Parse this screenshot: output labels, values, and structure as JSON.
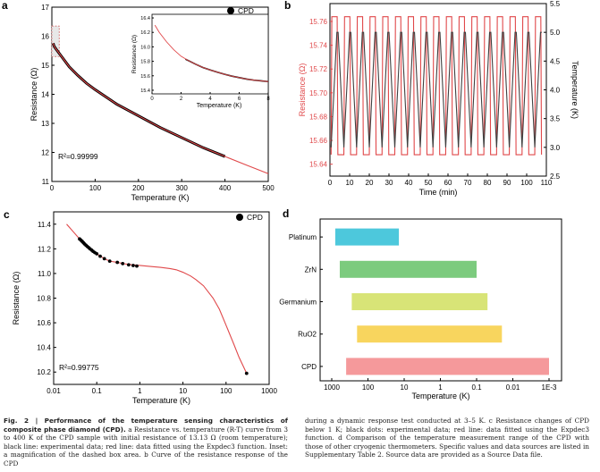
{
  "chart_data": [
    {
      "id": "a",
      "type": "line",
      "panel_label": "a",
      "xlabel": "Temperature (K)",
      "ylabel": "Resistance (Ω)",
      "xlim": [
        0,
        500
      ],
      "ylim": [
        11,
        17
      ],
      "xticks": [
        0,
        100,
        200,
        300,
        400,
        500
      ],
      "yticks": [
        11,
        12,
        13,
        14,
        15,
        16,
        17
      ],
      "legend": "CPD",
      "legend_position": "top-right",
      "annotation": "R² = 0.99999",
      "annotation_text": "R²=0.99999",
      "series": [
        {
          "role": "experimental",
          "color": "#000000",
          "marker": "dot",
          "x": [
            3,
            5,
            10,
            20,
            40,
            60,
            80,
            100,
            150,
            200,
            250,
            300,
            350,
            400
          ],
          "y": [
            15.76,
            15.66,
            15.55,
            15.35,
            14.95,
            14.65,
            14.38,
            14.16,
            13.66,
            13.26,
            12.86,
            12.51,
            12.16,
            11.86
          ]
        },
        {
          "role": "fit",
          "color": "#e0484a",
          "x": [
            3,
            5,
            10,
            20,
            40,
            60,
            80,
            100,
            150,
            200,
            250,
            300,
            350,
            400,
            450,
            500
          ],
          "y": [
            15.76,
            15.66,
            15.55,
            15.35,
            14.95,
            14.65,
            14.38,
            14.16,
            13.66,
            13.26,
            12.86,
            12.51,
            12.16,
            11.86,
            11.56,
            11.27
          ]
        }
      ],
      "inset": {
        "xlabel": "Temperature (K)",
        "ylabel": "Resistance (Ω)",
        "xlim": [
          0,
          8
        ],
        "ylim": [
          15.35,
          16.45
        ],
        "xticks": [
          0,
          2,
          4,
          6,
          8
        ],
        "yticks": [
          15.4,
          15.6,
          15.8,
          16.0,
          16.2,
          16.4
        ],
        "ytick_labels": [
          "15.4",
          "15.6",
          "15.8",
          "16.0",
          "16.2",
          "16.4"
        ],
        "series": [
          {
            "role": "experimental",
            "color": "#000000",
            "x": [
              2.3,
              2.6,
              3,
              3.5,
              4,
              4.5,
              5,
              5.5,
              6,
              6.5,
              7,
              7.5,
              8
            ],
            "y": [
              15.83,
              15.8,
              15.76,
              15.715,
              15.68,
              15.65,
              15.62,
              15.595,
              15.575,
              15.555,
              15.54,
              15.53,
              15.52
            ]
          },
          {
            "role": "fit",
            "color": "#e0484a",
            "x": [
              0.2,
              0.5,
              1,
              1.5,
              2,
              2.5,
              3,
              3.5,
              4,
              4.5,
              5,
              5.5,
              6,
              6.5,
              7,
              7.5,
              8
            ],
            "y": [
              16.3,
              16.2,
              16.07,
              15.96,
              15.87,
              15.81,
              15.76,
              15.715,
              15.68,
              15.65,
              15.62,
              15.595,
              15.575,
              15.555,
              15.54,
              15.53,
              15.52
            ]
          }
        ]
      }
    },
    {
      "id": "b",
      "type": "line",
      "panel_label": "b",
      "xlabel": "Time (min)",
      "ylabel": "Resistance (Ω)",
      "ylabel_right": "Temperature (K)",
      "xlim": [
        0,
        110
      ],
      "ylim": [
        15.63,
        15.775
      ],
      "ylim_right": [
        2.5,
        5.5
      ],
      "xticks": [
        0,
        10,
        20,
        30,
        40,
        50,
        60,
        70,
        80,
        90,
        100,
        110
      ],
      "yticks": [
        15.64,
        15.66,
        15.68,
        15.7,
        15.72,
        15.74,
        15.76
      ],
      "ytick_labels": [
        "15.64",
        "15.66",
        "15.68",
        "15.70",
        "15.72",
        "15.74",
        "15.76"
      ],
      "yticks_right": [
        2.5,
        3.0,
        3.5,
        4.0,
        4.5,
        5.0,
        5.5
      ],
      "ytick_labels_right": [
        "2.5",
        "3.0",
        "3.5",
        "4.0",
        "4.5",
        "5.0",
        "5.5"
      ],
      "resistance_color": "#e0484a",
      "temperature_color": "#404040",
      "cycle_period_min": 6.47,
      "resistance_high": 15.764,
      "resistance_low": 15.648,
      "temperature_high": 5.0,
      "temperature_low": 3.0
    },
    {
      "id": "c",
      "type": "line",
      "panel_label": "c",
      "xlabel": "Temperature (K)",
      "ylabel": "Resistance (Ω)",
      "xscale": "log",
      "xlim": [
        0.01,
        1000
      ],
      "ylim": [
        10.1,
        11.5
      ],
      "xticks": [
        0.01,
        0.1,
        1,
        10,
        100,
        1000
      ],
      "xtick_labels": [
        "0.01",
        "0.1",
        "1",
        "10",
        "100",
        "1000"
      ],
      "yticks": [
        10.2,
        10.4,
        10.6,
        10.8,
        11.0,
        11.2,
        11.4
      ],
      "ytick_labels": [
        "10.2",
        "10.4",
        "10.6",
        "10.8",
        "11.0",
        "11.2",
        "11.4"
      ],
      "legend": "CPD",
      "legend_position": "top-right",
      "annotation": "R² = 0.99775",
      "annotation_text": "R²=0.99775",
      "series": [
        {
          "role": "experimental",
          "color": "#000000",
          "x": [
            0.04,
            0.043,
            0.046,
            0.049,
            0.052,
            0.056,
            0.06,
            0.065,
            0.07,
            0.076,
            0.082,
            0.09,
            0.1,
            0.12,
            0.15,
            0.2,
            0.3,
            0.4,
            0.55,
            0.7,
            0.85,
            300
          ],
          "y": [
            11.28,
            11.27,
            11.26,
            11.25,
            11.24,
            11.23,
            11.22,
            11.21,
            11.2,
            11.19,
            11.18,
            11.17,
            11.16,
            11.14,
            11.12,
            11.1,
            11.09,
            11.08,
            11.07,
            11.065,
            11.06,
            10.19
          ]
        },
        {
          "role": "fit",
          "color": "#e0484a",
          "x": [
            0.02,
            0.03,
            0.04,
            0.06,
            0.08,
            0.1,
            0.15,
            0.2,
            0.3,
            0.5,
            0.7,
            1,
            2,
            3,
            5,
            7,
            10,
            15,
            20,
            30,
            50,
            70,
            100,
            150,
            200,
            300
          ],
          "y": [
            11.4,
            11.33,
            11.28,
            11.22,
            11.18,
            11.16,
            11.12,
            11.1,
            11.09,
            11.075,
            11.07,
            11.065,
            11.055,
            11.05,
            11.04,
            11.03,
            11.01,
            10.98,
            10.95,
            10.9,
            10.8,
            10.71,
            10.58,
            10.43,
            10.32,
            10.19
          ]
        }
      ]
    },
    {
      "id": "d",
      "type": "bar",
      "orientation": "horizontal",
      "panel_label": "d",
      "xlabel": "Temperature (K)",
      "xscale": "log-reversed",
      "xlim": [
        1000,
        0.001
      ],
      "xticks": [
        1000,
        100,
        10,
        1,
        0.1,
        0.01,
        0.001
      ],
      "xtick_labels": [
        "1000",
        "100",
        "10",
        "1",
        "0.1",
        "0.01",
        "1E-3"
      ],
      "categories": [
        "Platinum",
        "ZrN",
        "Germanium",
        "RuO2",
        "CPD"
      ],
      "ranges": [
        [
          800,
          14
        ],
        [
          600,
          0.1
        ],
        [
          280,
          0.05
        ],
        [
          200,
          0.02
        ],
        [
          400,
          0.001
        ]
      ],
      "colors": [
        "#4dc8dc",
        "#7ccb7e",
        "#d8e477",
        "#f8d55e",
        "#f5999b"
      ]
    }
  ],
  "caption": {
    "figure_label": "Fig. 2 |",
    "title": "Performance of the temperature sensing characteristics of composite phase diamond (CPD).",
    "left_body": "a Resistance vs. temperature (R-T) curve from 3 to 400 K of the CPD sample with initial resistance of 13.13 Ω (room temperature); black line: experimental data; red line: data fitted using the Expdec3 function. Inset: a magnification of the dashed box area. b Curve of the resistance response of the CPD",
    "right_body": "during a dynamic response test conducted at 3–5 K. c Resistance changes of CPD below 1 K; black dots: experimental data; red line: data fitted using the Expdec3 function. d Comparison of the temperature measurement range of the CPD with those of other cryogenic thermometers. Specific values and data sources are listed in Supplementary Table 2. Source data are provided as a Source Data file."
  }
}
